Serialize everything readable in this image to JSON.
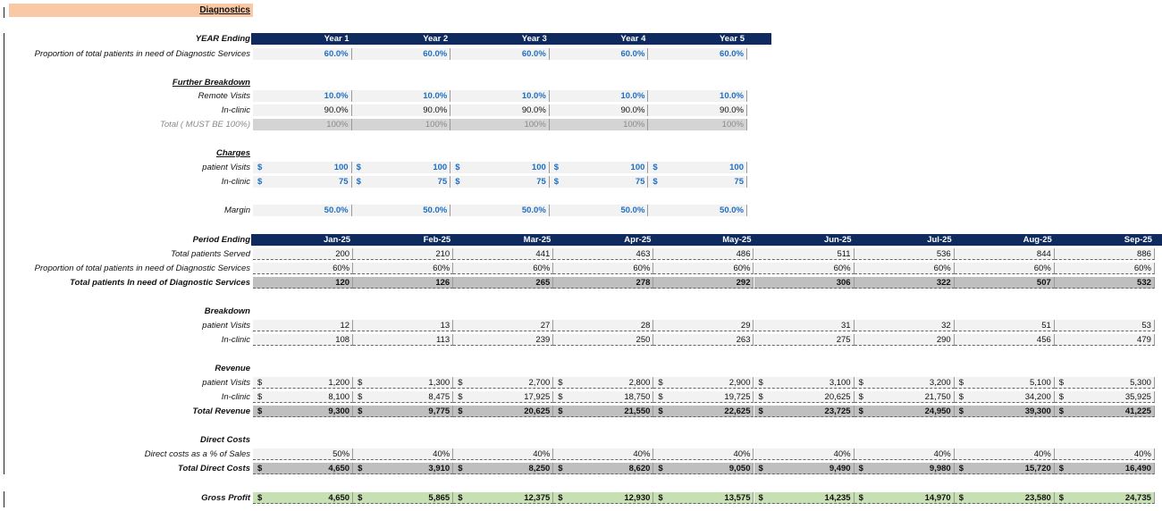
{
  "title": "Diagnostics",
  "colors": {
    "header_bg": "#0e2a5e",
    "title_bg": "#f8c9a4",
    "input_blue": "#1f6fc0",
    "total_bg": "#bfbfbf",
    "profit_bg": "#c6e0b4"
  },
  "annual": {
    "header_label": "YEAR Ending",
    "years": [
      "Year 1",
      "Year 2",
      "Year 3",
      "Year 4",
      "Year 5"
    ],
    "proportion_label": "Proportion of total patients in need of Diagnostic Services",
    "proportion": [
      "60.0%",
      "60.0%",
      "60.0%",
      "60.0%",
      "60.0%"
    ],
    "breakdown_title": "Further Breakdown",
    "remote_label": "Remote Visits",
    "remote": [
      "10.0%",
      "10.0%",
      "10.0%",
      "10.0%",
      "10.0%"
    ],
    "inclinic_label": "In-clinic",
    "inclinic": [
      "90.0%",
      "90.0%",
      "90.0%",
      "90.0%",
      "90.0%"
    ],
    "total_label": "Total ( MUST BE 100%)",
    "total": [
      "100%",
      "100%",
      "100%",
      "100%",
      "100%"
    ],
    "charges_title": "Charges",
    "charge_patient_label": "patient Visits",
    "charge_patient": [
      "100",
      "100",
      "100",
      "100",
      "100"
    ],
    "charge_inclinic_label": "In-clinic",
    "charge_inclinic": [
      "75",
      "75",
      "75",
      "75",
      "75"
    ],
    "margin_label": "Margin",
    "margin": [
      "50.0%",
      "50.0%",
      "50.0%",
      "50.0%",
      "50.0%"
    ],
    "currency": "$"
  },
  "monthly": {
    "header_label": "Period Ending",
    "months": [
      "Jan-25",
      "Feb-25",
      "Mar-25",
      "Apr-25",
      "May-25",
      "Jun-25",
      "Jul-25",
      "Aug-25",
      "Sep-25"
    ],
    "served_label": "Total patients Served",
    "served": [
      "200",
      "210",
      "441",
      "463",
      "486",
      "511",
      "536",
      "844",
      "886"
    ],
    "prop_label": "Proportion of total patients in need of Diagnostic Services",
    "prop": [
      "60%",
      "60%",
      "60%",
      "60%",
      "60%",
      "60%",
      "60%",
      "60%",
      "60%"
    ],
    "need_label": "Total patients In need of Diagnostic Services",
    "need": [
      "120",
      "126",
      "265",
      "278",
      "292",
      "306",
      "322",
      "507",
      "532"
    ],
    "breakdown_title": "Breakdown",
    "b_patient_label": "patient Visits",
    "b_patient": [
      "12",
      "13",
      "27",
      "28",
      "29",
      "31",
      "32",
      "51",
      "53"
    ],
    "b_inclinic_label": "In-clinic",
    "b_inclinic": [
      "108",
      "113",
      "239",
      "250",
      "263",
      "275",
      "290",
      "456",
      "479"
    ],
    "revenue_title": "Revenue",
    "r_patient_label": "patient Visits",
    "r_patient": [
      "1,200",
      "1,300",
      "2,700",
      "2,800",
      "2,900",
      "3,100",
      "3,200",
      "5,100",
      "5,300"
    ],
    "r_inclinic_label": "In-clinic",
    "r_inclinic": [
      "8,100",
      "8,475",
      "17,925",
      "18,750",
      "19,725",
      "20,625",
      "21,750",
      "34,200",
      "35,925"
    ],
    "r_total_label": "Total Revenue",
    "r_total": [
      "9,300",
      "9,775",
      "20,625",
      "21,550",
      "22,625",
      "23,725",
      "24,950",
      "39,300",
      "41,225"
    ],
    "dc_title": "Direct Costs",
    "dc_pct_label": "Direct costs as a % of Sales",
    "dc_pct": [
      "50%",
      "40%",
      "40%",
      "40%",
      "40%",
      "40%",
      "40%",
      "40%",
      "40%"
    ],
    "dc_total_label": "Total Direct Costs",
    "dc_total": [
      "4,650",
      "3,910",
      "8,250",
      "8,620",
      "9,050",
      "9,490",
      "9,980",
      "15,720",
      "16,490"
    ],
    "gp_label": "Gross Profit",
    "gp": [
      "4,650",
      "5,865",
      "12,375",
      "12,930",
      "13,575",
      "14,235",
      "14,970",
      "23,580",
      "24,735"
    ],
    "currency": "$"
  }
}
